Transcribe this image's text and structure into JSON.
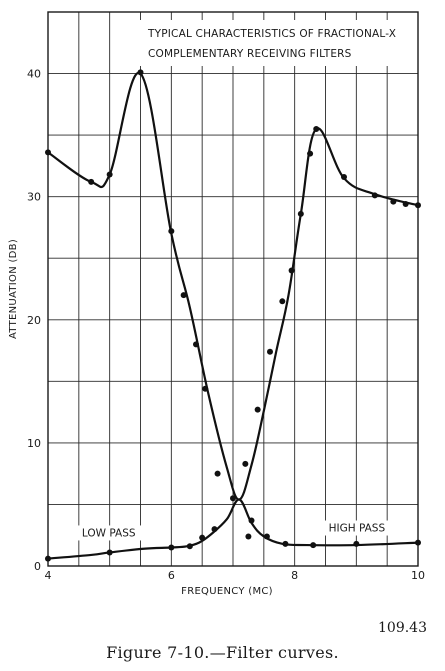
{
  "chart_data": {
    "type": "line",
    "title_lines": [
      "TYPICAL CHARACTERISTICS OF FRACTIONAL-X",
      "COMPLEMENTARY RECEIVING FILTERS"
    ],
    "xlabel": "FREQUENCY (MC)",
    "ylabel": "ATTENUATION (DB)",
    "xlim": [
      4,
      10
    ],
    "ylim": [
      0,
      45
    ],
    "x_ticks": [
      "4",
      "6",
      "8",
      "10"
    ],
    "y_ticks": [
      "0",
      "10",
      "20",
      "30",
      "40"
    ],
    "grid": true,
    "series": [
      {
        "name": "LOW PASS",
        "x": [
          4.0,
          4.7,
          5.0,
          5.55,
          6.0,
          6.25,
          6.45,
          6.65,
          6.9,
          7.1,
          7.3,
          7.5,
          7.8,
          8.2,
          9.0,
          10.0
        ],
        "y": [
          0.6,
          0.9,
          1.1,
          1.4,
          1.5,
          1.6,
          1.9,
          2.6,
          3.8,
          5.4,
          3.5,
          2.4,
          1.8,
          1.7,
          1.7,
          1.9
        ],
        "points": [
          [
            4.0,
            0.6
          ],
          [
            5.0,
            1.1
          ],
          [
            6.0,
            1.5
          ],
          [
            6.3,
            1.6
          ],
          [
            6.5,
            2.3
          ],
          [
            6.7,
            3.0
          ],
          [
            7.0,
            5.5
          ],
          [
            7.2,
            8.3
          ],
          [
            7.3,
            3.7
          ],
          [
            7.55,
            2.4
          ],
          [
            7.85,
            1.8
          ],
          [
            8.3,
            1.7
          ],
          [
            9.0,
            1.8
          ],
          [
            10.0,
            1.9
          ]
        ]
      },
      {
        "name": "HIGH PASS",
        "x": [
          4.0,
          4.7,
          5.0,
          5.5,
          6.0,
          6.3,
          6.6,
          6.9,
          7.1,
          7.3,
          7.5,
          7.7,
          7.9,
          8.1,
          8.35,
          8.8,
          9.3,
          10.0
        ],
        "y": [
          33.6,
          31.2,
          31.8,
          40.0,
          27.0,
          21.0,
          14.0,
          8.0,
          5.4,
          8.2,
          12.6,
          17.4,
          22.0,
          28.6,
          35.5,
          31.5,
          30.2,
          29.3
        ],
        "points": [
          [
            4.0,
            33.6
          ],
          [
            4.7,
            31.2
          ],
          [
            5.0,
            31.8
          ],
          [
            5.5,
            40.1
          ],
          [
            6.0,
            27.2
          ],
          [
            6.2,
            22.0
          ],
          [
            6.4,
            18.0
          ],
          [
            6.55,
            14.4
          ],
          [
            6.75,
            7.5
          ],
          [
            7.25,
            2.4
          ],
          [
            7.4,
            12.7
          ],
          [
            7.6,
            17.4
          ],
          [
            7.8,
            21.5
          ],
          [
            7.95,
            24.0
          ],
          [
            8.1,
            28.6
          ],
          [
            8.25,
            33.5
          ],
          [
            8.35,
            35.5
          ],
          [
            8.8,
            31.6
          ],
          [
            9.3,
            30.1
          ],
          [
            9.6,
            29.6
          ],
          [
            9.8,
            29.4
          ],
          [
            10.0,
            29.3
          ]
        ]
      }
    ],
    "curve_labels": [
      "LOW PASS",
      "HIGH PASS"
    ]
  },
  "figure_number": "109.43",
  "caption": "Figure 7-10.—Filter curves."
}
